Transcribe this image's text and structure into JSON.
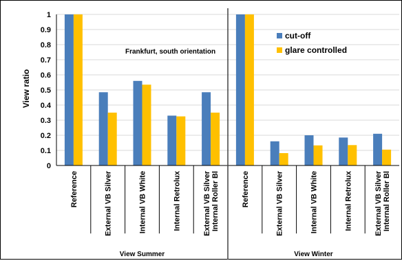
{
  "chart_data": {
    "type": "bar",
    "ylabel": "View ratio",
    "ylim": [
      0,
      1
    ],
    "yticks": [
      "0",
      "0.1",
      "0.2",
      "0.3",
      "0.4",
      "0.5",
      "0.6",
      "0.7",
      "0.8",
      "0.9",
      "1"
    ],
    "annotation": "Frankfurt, south orientation",
    "legend_position": "top-right",
    "grid": true,
    "groups": [
      {
        "label": "View Summer",
        "categories": [
          [
            "Reference"
          ],
          [
            "External VB Silver"
          ],
          [
            "Internal VB White"
          ],
          [
            "Internal Retrolux"
          ],
          [
            "External VB Silver",
            "Internal Roller Bl"
          ]
        ]
      },
      {
        "label": "View Winter",
        "categories": [
          [
            "Reference"
          ],
          [
            "External VB Silver"
          ],
          [
            "Internal VB White"
          ],
          [
            "Internal Retrolux"
          ],
          [
            "External VB Silver",
            "Internal Roller Bl"
          ]
        ]
      }
    ],
    "series": [
      {
        "name": "cut-off",
        "color": "#4a7ebb",
        "values": [
          1.0,
          0.485,
          0.56,
          0.33,
          0.485,
          1.0,
          0.16,
          0.2,
          0.185,
          0.21
        ]
      },
      {
        "name": "glare controlled",
        "color": "#ffc000",
        "values": [
          1.0,
          0.35,
          0.535,
          0.325,
          0.35,
          1.0,
          0.082,
          0.133,
          0.135,
          0.105
        ]
      }
    ]
  }
}
